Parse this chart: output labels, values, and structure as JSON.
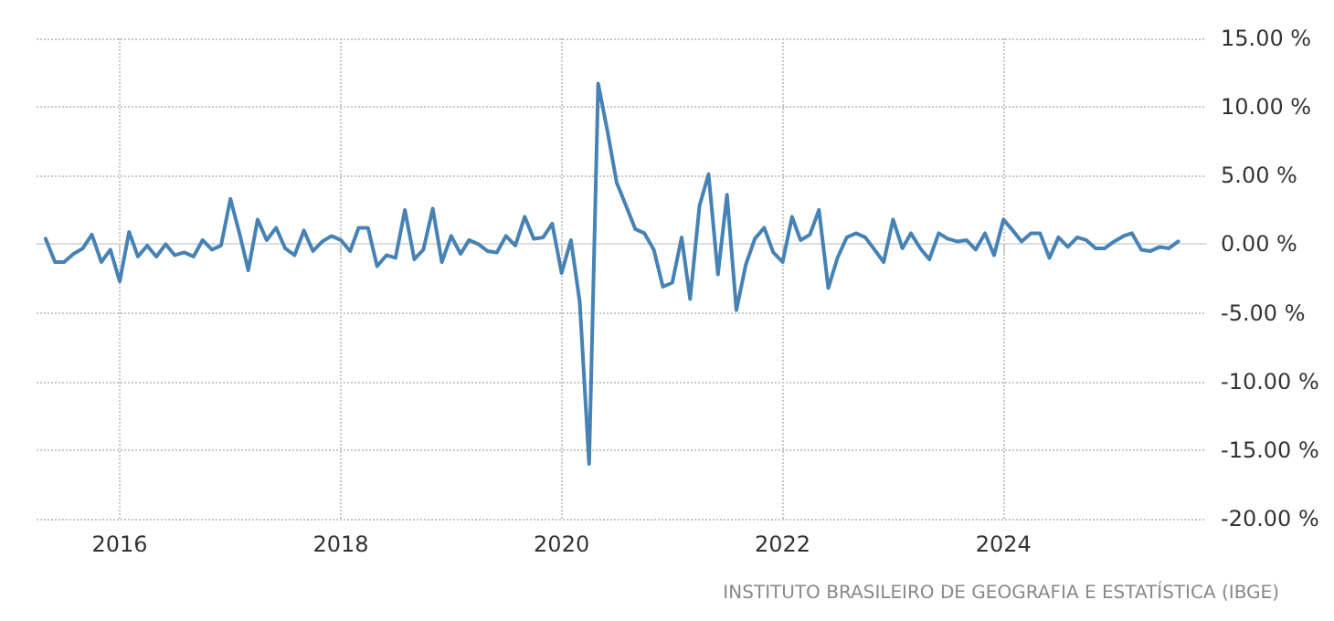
{
  "chart_data": {
    "type": "line",
    "x": [
      "2015-05",
      "2015-06",
      "2015-07",
      "2015-08",
      "2015-09",
      "2015-10",
      "2015-11",
      "2015-12",
      "2016-01",
      "2016-02",
      "2016-03",
      "2016-04",
      "2016-05",
      "2016-06",
      "2016-07",
      "2016-08",
      "2016-09",
      "2016-10",
      "2016-11",
      "2016-12",
      "2017-01",
      "2017-02",
      "2017-03",
      "2017-04",
      "2017-05",
      "2017-06",
      "2017-07",
      "2017-08",
      "2017-09",
      "2017-10",
      "2017-11",
      "2017-12",
      "2018-01",
      "2018-02",
      "2018-03",
      "2018-04",
      "2018-05",
      "2018-06",
      "2018-07",
      "2018-08",
      "2018-09",
      "2018-10",
      "2018-11",
      "2018-12",
      "2019-01",
      "2019-02",
      "2019-03",
      "2019-04",
      "2019-05",
      "2019-06",
      "2019-07",
      "2019-08",
      "2019-09",
      "2019-10",
      "2019-11",
      "2019-12",
      "2020-01",
      "2020-02",
      "2020-03",
      "2020-04",
      "2020-05",
      "2020-06",
      "2020-07",
      "2020-08",
      "2020-09",
      "2020-10",
      "2020-11",
      "2020-12",
      "2021-01",
      "2021-02",
      "2021-03",
      "2021-04",
      "2021-05",
      "2021-06",
      "2021-07",
      "2021-08",
      "2021-09",
      "2021-10",
      "2021-11",
      "2021-12",
      "2022-01",
      "2022-02",
      "2022-03",
      "2022-04",
      "2022-05",
      "2022-06",
      "2022-07",
      "2022-08",
      "2022-09",
      "2022-10",
      "2022-11",
      "2022-12",
      "2023-01",
      "2023-02",
      "2023-03",
      "2023-04",
      "2023-05",
      "2023-06",
      "2023-07",
      "2023-08",
      "2023-09",
      "2023-10",
      "2023-11",
      "2023-12",
      "2024-01",
      "2024-02",
      "2024-03",
      "2024-04",
      "2024-05",
      "2024-06",
      "2024-07",
      "2024-08",
      "2024-09",
      "2024-10",
      "2024-11",
      "2024-12",
      "2025-01",
      "2025-02",
      "2025-03",
      "2025-04",
      "2025-05",
      "2025-06",
      "2025-07",
      "2025-08"
    ],
    "series": [
      {
        "color": "#4682b4",
        "values": [
          0.4,
          -1.3,
          -1.3,
          -0.7,
          -0.3,
          0.7,
          -1.3,
          -0.4,
          -2.7,
          0.9,
          -0.9,
          -0.1,
          -0.9,
          0.0,
          -0.8,
          -0.6,
          -0.9,
          0.3,
          -0.4,
          -0.1,
          3.3,
          0.7,
          -1.9,
          1.8,
          0.3,
          1.2,
          -0.3,
          -0.8,
          1.0,
          -0.5,
          0.2,
          0.6,
          0.3,
          -0.5,
          1.2,
          1.2,
          -1.6,
          -0.8,
          -1.0,
          2.5,
          -1.1,
          -0.4,
          2.6,
          -1.3,
          0.6,
          -0.7,
          0.3,
          0.0,
          -0.5,
          -0.6,
          0.6,
          -0.1,
          2.0,
          0.4,
          0.5,
          1.5,
          -2.1,
          0.3,
          -4.2,
          -16.0,
          11.7,
          8.2,
          4.5,
          2.8,
          1.1,
          0.8,
          -0.4,
          -3.1,
          -2.8,
          0.5,
          -4.0,
          2.8,
          5.1,
          -2.2,
          3.6,
          -4.8,
          -1.5,
          0.4,
          1.2,
          -0.6,
          -1.3,
          2.0,
          0.3,
          0.7,
          2.5,
          -3.2,
          -1.0,
          0.5,
          0.8,
          0.5,
          -0.4,
          -1.3,
          1.8,
          -0.3,
          0.8,
          -0.3,
          -1.1,
          0.8,
          0.4,
          0.2,
          0.3,
          -0.4,
          0.8,
          -0.8,
          1.8,
          1.0,
          0.2,
          0.8,
          0.8,
          -1.0,
          0.5,
          -0.2,
          0.5,
          0.3,
          -0.3,
          -0.3,
          0.2,
          0.6,
          0.8,
          -0.4,
          -0.5,
          -0.2,
          -0.3,
          0.2
        ]
      }
    ],
    "xlim": [
      "2015-04",
      "2025-11"
    ],
    "xticks": [
      {
        "value": "2016-01",
        "label": "2016"
      },
      {
        "value": "2018-01",
        "label": "2018"
      },
      {
        "value": "2020-01",
        "label": "2020"
      },
      {
        "value": "2022-01",
        "label": "2022"
      },
      {
        "value": "2024-01",
        "label": "2024"
      }
    ],
    "ylim": [
      -20,
      15
    ],
    "yticks": [
      {
        "value": -20,
        "label": "-20.00 %"
      },
      {
        "value": -15,
        "label": "-15.00 %"
      },
      {
        "value": -10,
        "label": "-10.00 %"
      },
      {
        "value": -5,
        "label": "-5.00 %"
      },
      {
        "value": 0,
        "label": "0.00 %"
      },
      {
        "value": 5,
        "label": "5.00 %"
      },
      {
        "value": 10,
        "label": "10.00 %"
      },
      {
        "value": 15,
        "label": "15.00 %"
      }
    ],
    "grid": true,
    "line_style": "solid",
    "annotations": [
      "INSTITUTO BRASILEIRO DE GEOGRAFIA E ESTATÍSTICA (IBGE)"
    ]
  }
}
